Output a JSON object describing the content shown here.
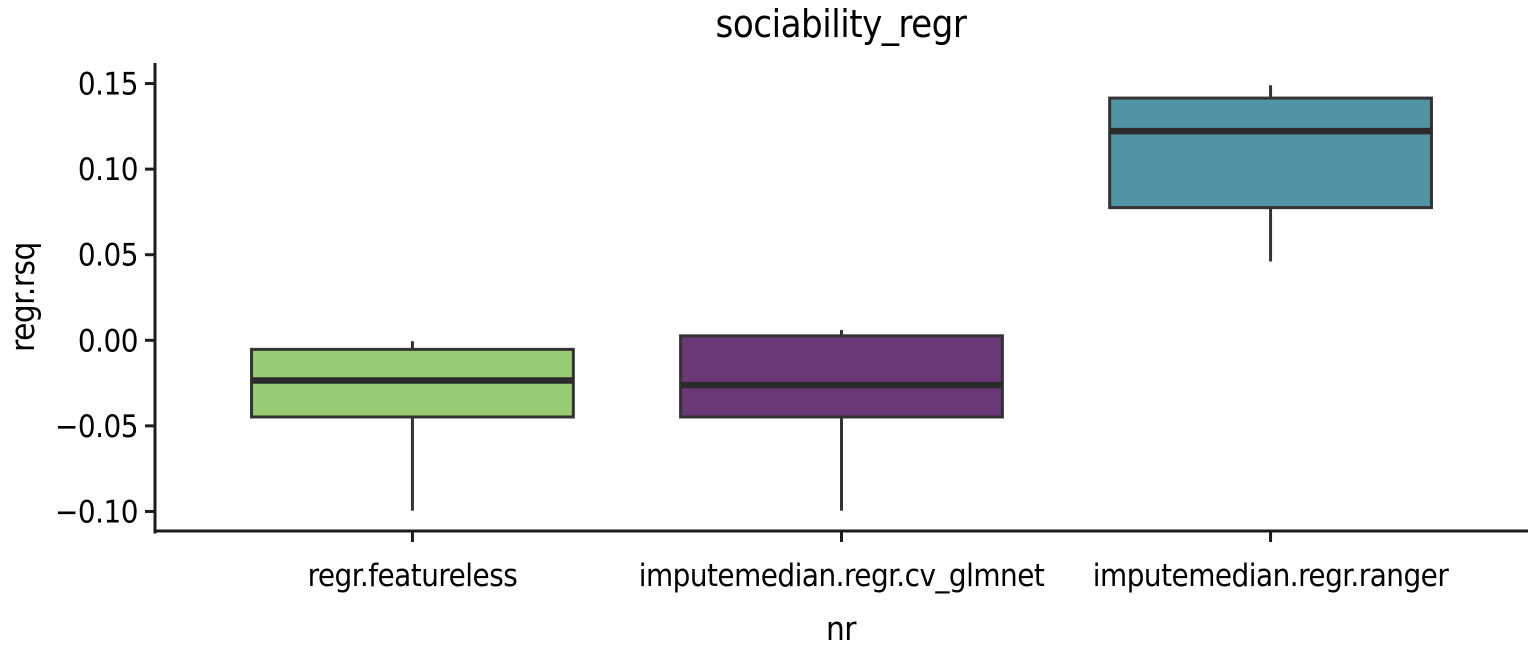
{
  "page": {
    "title": "sociability_regr"
  },
  "chart_data": {
    "type": "boxplot",
    "title": "sociability_regr",
    "xlabel": "nr",
    "ylabel": "regr.rsq",
    "categories": [
      "regr.featureless",
      "imputemedian.regr.cv_glmnet",
      "imputemedian.regr.ranger"
    ],
    "series": [
      {
        "name": "regr.featureless",
        "fill": "#97CB74",
        "whisker_low": -0.0995,
        "q1": -0.0448,
        "median": -0.0235,
        "q3": -0.0053,
        "whisker_high": -0.0005
      },
      {
        "name": "imputemedian.regr.cv_glmnet",
        "fill": "#6B3877",
        "whisker_low": -0.0995,
        "q1": -0.0448,
        "median": -0.0262,
        "q3": 0.0026,
        "whisker_high": 0.006
      },
      {
        "name": "imputemedian.regr.ranger",
        "fill": "#5294A4",
        "whisker_low": 0.046,
        "q1": 0.0775,
        "median": 0.1222,
        "q3": 0.1415,
        "whisker_high": 0.149
      }
    ],
    "y_ticks": [
      {
        "value": 0.15,
        "label": "0.15"
      },
      {
        "value": 0.1,
        "label": "0.10"
      },
      {
        "value": 0.05,
        "label": "0.05"
      },
      {
        "value": 0.0,
        "label": "0.00"
      },
      {
        "value": -0.05,
        "label": "−0.05"
      },
      {
        "value": -0.1,
        "label": "−0.10"
      }
    ],
    "ylim": [
      -0.112,
      0.162
    ],
    "grid": false,
    "legend": "none",
    "colors": {
      "box_stroke": "#333333",
      "median_stroke": "#2b2b2b",
      "whisker_stroke": "#333333",
      "axis_line": "#1c1c1c",
      "text": "#000000",
      "background": "#ffffff"
    }
  }
}
